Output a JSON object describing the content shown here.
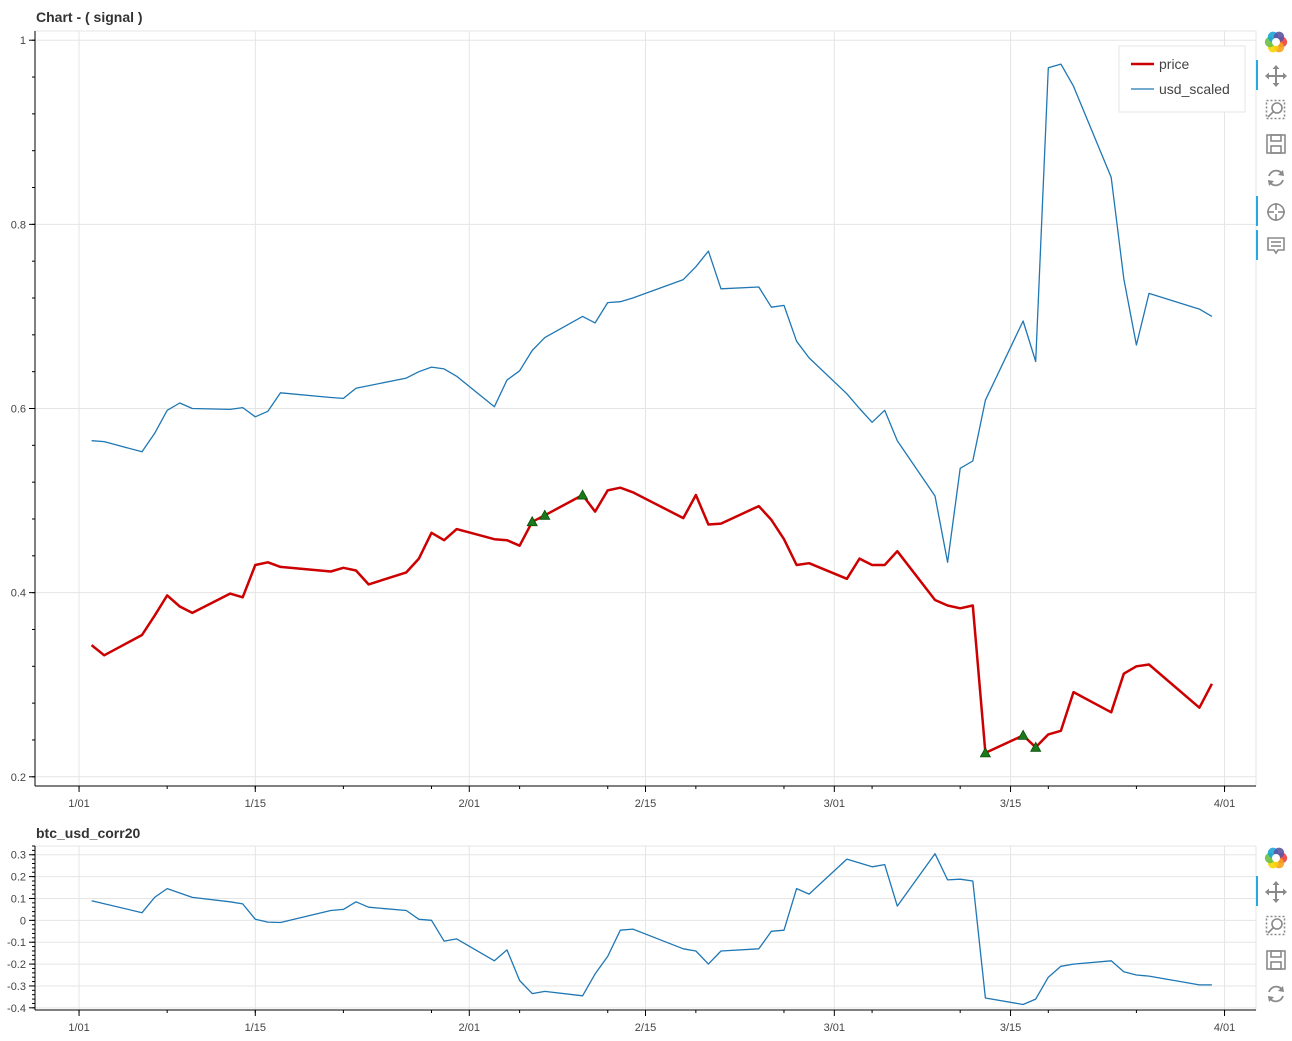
{
  "chart_data": [
    {
      "type": "line",
      "title": "Chart - ( signal )",
      "xlabel": "",
      "ylabel": "",
      "x_ticks": [
        "1/01",
        "1/15",
        "2/01",
        "2/15",
        "3/01",
        "3/15",
        "4/01"
      ],
      "y_ticks": [
        "0.2",
        "0.4",
        "0.6",
        "0.8",
        "1"
      ],
      "ylim": [
        0.19,
        1.01
      ],
      "xlim_days": [
        -3.5,
        93.5
      ],
      "grid": true,
      "legend_position": "top-right",
      "series": [
        {
          "name": "usd_scaled",
          "color": "#1f77b4",
          "x": [
            "1/02",
            "1/03",
            "1/06",
            "1/07",
            "1/08",
            "1/09",
            "1/10",
            "1/13",
            "1/14",
            "1/15",
            "1/16",
            "1/17",
            "1/21",
            "1/22",
            "1/23",
            "1/27",
            "1/28",
            "1/29",
            "1/30",
            "1/31",
            "2/03",
            "2/04",
            "2/05",
            "2/06",
            "2/07",
            "2/10",
            "2/11",
            "2/12",
            "2/13",
            "2/14",
            "2/18",
            "2/19",
            "2/20",
            "2/21",
            "2/24",
            "2/25",
            "2/26",
            "2/27",
            "2/28",
            "3/02",
            "3/03",
            "3/04",
            "3/05",
            "3/06",
            "3/09",
            "3/10",
            "3/11",
            "3/12",
            "3/13",
            "3/16",
            "3/17",
            "3/18",
            "3/19",
            "3/20",
            "3/23",
            "3/24",
            "3/25",
            "3/26",
            "3/30",
            "3/31"
          ],
          "values": [
            0.565,
            0.564,
            0.553,
            0.573,
            0.598,
            0.606,
            0.6,
            0.599,
            0.601,
            0.591,
            0.597,
            0.617,
            0.612,
            0.611,
            0.622,
            0.633,
            0.64,
            0.645,
            0.643,
            0.635,
            0.602,
            0.631,
            0.641,
            0.663,
            0.677,
            0.7,
            0.693,
            0.715,
            0.716,
            0.72,
            0.74,
            0.754,
            0.771,
            0.73,
            0.732,
            0.71,
            0.712,
            0.673,
            0.655,
            0.616,
            0.6,
            0.585,
            0.598,
            0.565,
            0.505,
            0.433,
            0.535,
            0.543,
            0.609,
            0.695,
            0.651,
            0.97,
            0.974,
            0.95,
            0.851,
            0.741,
            0.669,
            0.725,
            0.708,
            0.7
          ]
        },
        {
          "name": "price",
          "color": "#cc0000",
          "x": [
            "1/02",
            "1/03",
            "1/06",
            "1/07",
            "1/08",
            "1/09",
            "1/10",
            "1/13",
            "1/14",
            "1/15",
            "1/16",
            "1/17",
            "1/21",
            "1/22",
            "1/23",
            "1/24",
            "1/27",
            "1/28",
            "1/29",
            "1/30",
            "1/31",
            "2/03",
            "2/04",
            "2/05",
            "2/06",
            "2/07",
            "2/10",
            "2/11",
            "2/12",
            "2/13",
            "2/14",
            "2/18",
            "2/19",
            "2/20",
            "2/21",
            "2/24",
            "2/25",
            "2/26",
            "2/27",
            "2/28",
            "3/02",
            "3/03",
            "3/04",
            "3/05",
            "3/06",
            "3/09",
            "3/10",
            "3/11",
            "3/12",
            "3/13",
            "3/16",
            "3/17",
            "3/18",
            "3/19",
            "3/20",
            "3/23",
            "3/24",
            "3/25",
            "3/26",
            "3/30",
            "3/31"
          ],
          "values": [
            0.343,
            0.332,
            0.354,
            0.375,
            0.397,
            0.385,
            0.378,
            0.399,
            0.395,
            0.43,
            0.433,
            0.428,
            0.423,
            0.427,
            0.424,
            0.409,
            0.422,
            0.437,
            0.465,
            0.457,
            0.469,
            0.458,
            0.457,
            0.451,
            0.477,
            0.484,
            0.506,
            0.488,
            0.511,
            0.514,
            0.509,
            0.481,
            0.506,
            0.474,
            0.475,
            0.494,
            0.479,
            0.458,
            0.43,
            0.432,
            0.415,
            0.437,
            0.43,
            0.43,
            0.445,
            0.392,
            0.386,
            0.383,
            0.386,
            0.226,
            0.245,
            0.232,
            0.246,
            0.25,
            0.292,
            0.27,
            0.312,
            0.32,
            0.322,
            0.275,
            0.301
          ]
        }
      ],
      "markers": {
        "shape": "triangle",
        "color": "#1a7a1a",
        "points": [
          {
            "x": "2/06",
            "y": 0.477
          },
          {
            "x": "2/07",
            "y": 0.484
          },
          {
            "x": "2/10",
            "y": 0.506
          },
          {
            "x": "3/13",
            "y": 0.226
          },
          {
            "x": "3/16",
            "y": 0.245
          },
          {
            "x": "3/17",
            "y": 0.232
          }
        ]
      }
    },
    {
      "type": "line",
      "title": "btc_usd_corr20",
      "xlabel": "",
      "ylabel": "",
      "x_ticks": [
        "1/01",
        "1/15",
        "2/01",
        "2/15",
        "3/01",
        "3/15",
        "4/01"
      ],
      "y_ticks": [
        "0.3",
        "0.2",
        "0.1",
        "0",
        "-0.1",
        "-0.2",
        "-0.3",
        "-0.4"
      ],
      "ylim": [
        -0.41,
        0.34
      ],
      "xlim_days": [
        -3.5,
        93.5
      ],
      "grid": true,
      "series": [
        {
          "name": "btc_usd_corr20",
          "color": "#1f77b4",
          "x": [
            "1/02",
            "1/06",
            "1/07",
            "1/08",
            "1/10",
            "1/13",
            "1/14",
            "1/15",
            "1/16",
            "1/17",
            "1/21",
            "1/22",
            "1/23",
            "1/24",
            "1/27",
            "1/28",
            "1/29",
            "1/30",
            "1/31",
            "2/03",
            "2/04",
            "2/05",
            "2/06",
            "2/07",
            "2/10",
            "2/11",
            "2/12",
            "2/13",
            "2/14",
            "2/18",
            "2/19",
            "2/20",
            "2/21",
            "2/24",
            "2/25",
            "2/26",
            "2/27",
            "2/28",
            "3/02",
            "3/04",
            "3/05",
            "3/06",
            "3/09",
            "3/10",
            "3/11",
            "3/12",
            "3/13",
            "3/16",
            "3/17",
            "3/18",
            "3/19",
            "3/20",
            "3/23",
            "3/24",
            "3/25",
            "3/26",
            "3/30",
            "3/31"
          ],
          "values": [
            0.09,
            0.035,
            0.105,
            0.145,
            0.105,
            0.085,
            0.075,
            0.005,
            -0.008,
            -0.01,
            0.045,
            0.05,
            0.085,
            0.06,
            0.045,
            0.005,
            0.0,
            -0.095,
            -0.085,
            -0.185,
            -0.135,
            -0.275,
            -0.335,
            -0.325,
            -0.345,
            -0.245,
            -0.165,
            -0.045,
            -0.04,
            -0.13,
            -0.14,
            -0.2,
            -0.14,
            -0.13,
            -0.05,
            -0.045,
            0.145,
            0.12,
            0.28,
            0.245,
            0.255,
            0.065,
            0.305,
            0.185,
            0.188,
            0.18,
            -0.355,
            -0.385,
            -0.36,
            -0.26,
            -0.21,
            -0.2,
            -0.185,
            -0.235,
            -0.25,
            -0.255,
            -0.295,
            -0.295
          ]
        }
      ]
    }
  ],
  "toolbar": {
    "main": [
      "bokeh-logo-icon",
      "pan-icon",
      "box-zoom-icon",
      "save-icon",
      "reset-icon",
      "crosshair-icon",
      "hover-icon"
    ],
    "sub": [
      "bokeh-logo-icon",
      "pan-icon",
      "box-zoom-icon",
      "save-icon",
      "reset-icon"
    ]
  }
}
